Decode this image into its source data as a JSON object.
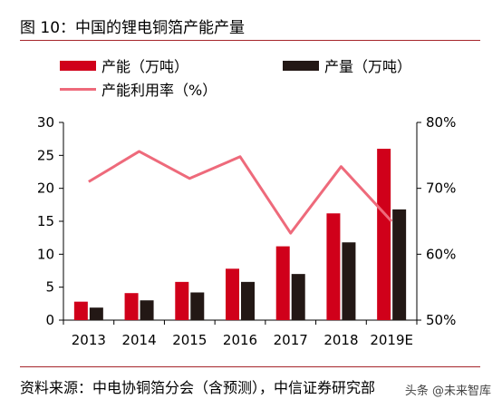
{
  "header": {
    "title": "图 10：中国的锂电铜箔产能产量"
  },
  "footer": {
    "source": "资料来源：中电协铜箔分会（含预测），中信证券研究部",
    "watermark": "头条 @未来智库"
  },
  "colors": {
    "capacity": "#d0001a",
    "output": "#231815",
    "utilization": "#ee6a7b",
    "rule": "#a6252b"
  },
  "chart_data": {
    "type": "bar",
    "categories": [
      "2013",
      "2014",
      "2015",
      "2016",
      "2017",
      "2018",
      "2019E"
    ],
    "series": [
      {
        "name": "产能（万吨）",
        "type": "bar",
        "axis": "left",
        "values": [
          2.8,
          4.1,
          5.8,
          7.8,
          11.2,
          16.2,
          26.0
        ]
      },
      {
        "name": "产量（万吨）",
        "type": "bar",
        "axis": "left",
        "values": [
          1.9,
          3.0,
          4.2,
          5.8,
          7.0,
          11.8,
          16.8
        ]
      },
      {
        "name": "产能利用率（%）",
        "type": "line",
        "axis": "right",
        "values": [
          71.0,
          75.6,
          71.5,
          74.8,
          63.2,
          73.3,
          65.0
        ]
      }
    ],
    "yleft": {
      "lim": [
        0,
        30
      ],
      "ticks": [
        "0",
        "5",
        "10",
        "15",
        "20",
        "25",
        "30"
      ]
    },
    "yright": {
      "lim": [
        50,
        80
      ],
      "ticks": [
        "50%",
        "60%",
        "70%",
        "80%"
      ]
    },
    "grid": false,
    "legend": "top"
  }
}
